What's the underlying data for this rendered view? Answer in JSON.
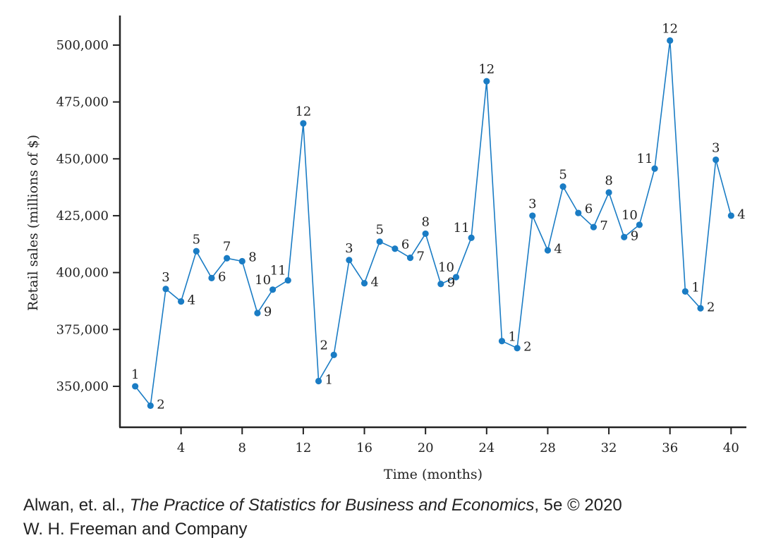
{
  "chart_data": {
    "type": "line",
    "xlabel": "Time (months)",
    "ylabel": "Retail sales (millions of $)",
    "xlim": [
      0,
      41
    ],
    "ylim": [
      332000,
      513000
    ],
    "x_ticks": [
      4,
      8,
      12,
      16,
      20,
      24,
      28,
      32,
      36,
      40
    ],
    "x_tick_labels": [
      "4",
      "8",
      "12",
      "16",
      "20",
      "24",
      "28",
      "32",
      "36",
      "40"
    ],
    "y_ticks": [
      350000,
      375000,
      400000,
      425000,
      450000,
      475000,
      500000
    ],
    "y_tick_labels": [
      "350,000",
      "375,000",
      "400,000",
      "425,000",
      "450,000",
      "475,000",
      "500,000"
    ],
    "grid": false,
    "line_color": "#1a7cc4",
    "series": [
      {
        "x": [
          1,
          2,
          3,
          4,
          5,
          6,
          7,
          8,
          9,
          10,
          11,
          12,
          13,
          14,
          15,
          16,
          17,
          18,
          19,
          20,
          21,
          22,
          23,
          24,
          25,
          26,
          27,
          28,
          29,
          30,
          31,
          32,
          33,
          34,
          35,
          36,
          37,
          38,
          39,
          40
        ],
        "values": [
          350000,
          341500,
          392800,
          387300,
          409400,
          397600,
          406300,
          405000,
          382200,
          392500,
          396600,
          465600,
          352300,
          363800,
          405500,
          395300,
          413600,
          410500,
          406500,
          417100,
          395000,
          398000,
          415300,
          484100,
          369900,
          366800,
          425000,
          409800,
          437800,
          426200,
          420000,
          435200,
          415600,
          421000,
          445700,
          502000,
          391700,
          384300,
          449600,
          425000
        ],
        "point_labels": [
          "1",
          "2",
          "3",
          "4",
          "5",
          "6",
          "7",
          "8",
          "9",
          "10",
          "11",
          "12",
          "1",
          "2",
          "3",
          "4",
          "5",
          "6",
          "7",
          "8",
          "9",
          "10",
          "11",
          "12",
          "1",
          "2",
          "3",
          "4",
          "5",
          "6",
          "7",
          "8",
          "9",
          "10",
          "11",
          "12",
          "1",
          "2",
          "3",
          "4"
        ]
      }
    ]
  },
  "credit": {
    "line1_pre": "Alwan, et. al., ",
    "line1_title": "The Practice of Statistics for Business and Economics",
    "line1_post": ", 5e © 2020",
    "line2": "W. H. Freeman and Company"
  }
}
